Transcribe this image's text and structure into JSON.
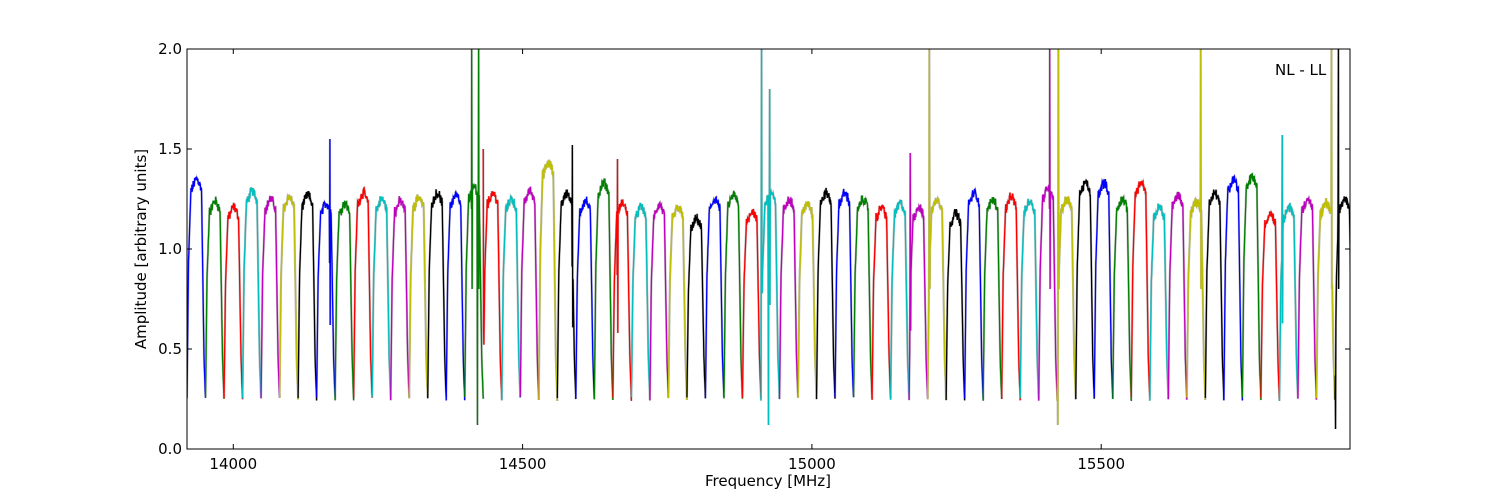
{
  "chart_data": {
    "type": "line",
    "title": "",
    "xlabel": "Frequency [MHz]",
    "ylabel": "Amplitude [arbitrary units]",
    "xlim": [
      13920,
      15930
    ],
    "ylim": [
      0.0,
      2.0
    ],
    "xticks": [
      14000,
      14500,
      15000,
      15500
    ],
    "yticks": [
      0.0,
      0.5,
      1.0,
      1.5,
      2.0
    ],
    "ytick_labels": [
      "0.0",
      "0.5",
      "1.0",
      "1.5",
      "2.0"
    ],
    "grid": false,
    "legend": "none",
    "annotation": "NL - LL",
    "color_cycle": [
      "#0000ff",
      "#008000",
      "#ff0000",
      "#00bfbf",
      "#bf00bf",
      "#bfbf00",
      "#000000"
    ],
    "shadow_color": "#bbbbbb",
    "channel_width_mhz": 32,
    "channel_start_mhz": 13920,
    "channel_levels": [
      1.32,
      1.21,
      1.18,
      1.26,
      1.22,
      1.23,
      1.24,
      1.2,
      1.2,
      1.25,
      1.22,
      1.21,
      1.23,
      1.25,
      1.24,
      1.28,
      1.25,
      1.22,
      1.26,
      1.4,
      1.25,
      1.21,
      1.3,
      1.2,
      1.18,
      1.19,
      1.18,
      1.12,
      1.22,
      1.24,
      1.16,
      1.25,
      1.22,
      1.2,
      1.25,
      1.25,
      1.22,
      1.18,
      1.2,
      1.18,
      1.22,
      1.15,
      1.25,
      1.22,
      1.23,
      1.21,
      1.28,
      1.22,
      1.3,
      1.3,
      1.22,
      1.3,
      1.18,
      1.24,
      1.21,
      1.25,
      1.32,
      1.33,
      1.15,
      1.18,
      1.22,
      1.2,
      1.22
    ],
    "spikes": [
      {
        "x": 14167,
        "y": 1.55
      },
      {
        "x": 14412,
        "y": 2.0
      },
      {
        "x": 14424,
        "y": 2.0
      },
      {
        "x": 14432,
        "y": 1.5
      },
      {
        "x": 14586,
        "y": 1.52
      },
      {
        "x": 14664,
        "y": 1.45
      },
      {
        "x": 14913,
        "y": 2.0
      },
      {
        "x": 14927,
        "y": 1.8
      },
      {
        "x": 15170,
        "y": 1.48
      },
      {
        "x": 15203,
        "y": 2.0
      },
      {
        "x": 15411,
        "y": 2.0
      },
      {
        "x": 15426,
        "y": 2.0
      },
      {
        "x": 15672,
        "y": 2.0
      },
      {
        "x": 15813,
        "y": 1.57
      },
      {
        "x": 15898,
        "y": 2.0
      },
      {
        "x": 15910,
        "y": 2.0
      }
    ],
    "deep_dips": [
      {
        "x": 14422,
        "y": 0.12
      },
      {
        "x": 14925,
        "y": 0.12
      },
      {
        "x": 15425,
        "y": 0.12
      },
      {
        "x": 15905,
        "y": 0.1
      }
    ]
  }
}
